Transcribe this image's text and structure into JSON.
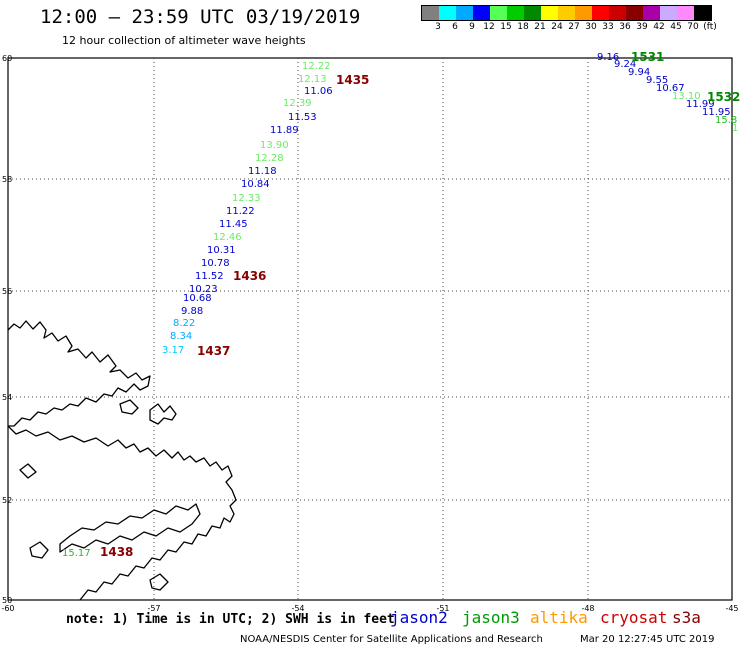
{
  "header": {
    "title": "12:00 – 23:59 UTC 03/19/2019",
    "subtitle": "12 hour collection of altimeter wave heights"
  },
  "legend": {
    "colors": [
      "#808080",
      "#00ffff",
      "#00aaff",
      "#0000ff",
      "#55ff55",
      "#00cc00",
      "#008800",
      "#ffff00",
      "#ffcc00",
      "#ff9900",
      "#ff0000",
      "#cc0000",
      "#880000",
      "#aa00aa",
      "#ccaaff",
      "#ff88ff",
      "#000000"
    ],
    "labels": [
      "3",
      "6",
      "9",
      "12",
      "15",
      "18",
      "21",
      "24",
      "27",
      "30",
      "33",
      "36",
      "39",
      "42",
      "45",
      "70",
      "(ft)"
    ]
  },
  "map": {
    "lat_labels": [
      "60",
      "58",
      "56",
      "54",
      "52",
      "50"
    ],
    "lon_labels": [
      "-60",
      "-57",
      "-54",
      "-51",
      "-48",
      "-45"
    ]
  },
  "tracks": [
    {
      "points": [
        {
          "text": "12.22",
          "color": "#66ee66"
        },
        {
          "text": "12.13",
          "color": "#66ee66"
        },
        {
          "text": "11.06",
          "color": "#0000cc"
        },
        {
          "text": "12.39",
          "color": "#66ee66"
        },
        {
          "text": "11.53",
          "color": "#0000cc"
        },
        {
          "text": "11.89",
          "color": "#0000cc"
        },
        {
          "text": "13.90",
          "color": "#66ee66"
        },
        {
          "text": "12.28",
          "color": "#66ee66"
        },
        {
          "text": "11.18",
          "color": "#0000cc"
        },
        {
          "text": "10.84",
          "color": "#0000cc"
        },
        {
          "text": "12.33",
          "color": "#66ee66"
        },
        {
          "text": "11.22",
          "color": "#0000cc"
        },
        {
          "text": "11.45",
          "color": "#0000cc"
        },
        {
          "text": "12.46",
          "color": "#66ee66"
        },
        {
          "text": "10.31",
          "color": "#0000cc"
        },
        {
          "text": "10.78",
          "color": "#0000cc"
        },
        {
          "text": "11.52",
          "color": "#0000cc"
        },
        {
          "text": "10.23",
          "color": "#0000cc"
        },
        {
          "text": "10.68",
          "color": "#0000cc"
        },
        {
          "text": "9.88",
          "color": "#0000cc"
        },
        {
          "text": "8.22",
          "color": "#00aaff"
        },
        {
          "text": "8.34",
          "color": "#00aaff"
        },
        {
          "text": "3.17",
          "color": "#00ccff"
        },
        {
          "text": "15.17",
          "color": "#22bb22"
        }
      ]
    },
    {
      "points": [
        {
          "text": "9.16",
          "color": "#0000cc"
        },
        {
          "text": "9.24",
          "color": "#0000cc"
        },
        {
          "text": "9.94",
          "color": "#0000cc"
        },
        {
          "text": "9.55",
          "color": "#0000cc"
        },
        {
          "text": "10.67",
          "color": "#0000cc"
        },
        {
          "text": "13.10",
          "color": "#66ee66"
        },
        {
          "text": "11.99",
          "color": "#0000cc"
        },
        {
          "text": "11.95",
          "color": "#0000cc"
        },
        {
          "text": "15.8",
          "color": "#22bb22"
        },
        {
          "text": "1",
          "color": "#66ee66"
        }
      ]
    }
  ],
  "time_labels": [
    {
      "text": "1435",
      "color": "#880000"
    },
    {
      "text": "1436",
      "color": "#880000"
    },
    {
      "text": "1437",
      "color": "#880000"
    },
    {
      "text": "1438",
      "color": "#880000"
    },
    {
      "text": "1531",
      "color": "#008800"
    },
    {
      "text": "1532",
      "color": "#008800"
    }
  ],
  "footer": {
    "note": "note: 1) Time is in UTC; 2) SWH is in feet",
    "satellites": [
      {
        "name": "jason2",
        "color": "#0000cc"
      },
      {
        "name": "jason3",
        "color": "#009900"
      },
      {
        "name": "altika",
        "color": "#ff9900"
      },
      {
        "name": "cryosat",
        "color": "#cc0000"
      },
      {
        "name": "s3a",
        "color": "#880000"
      }
    ],
    "credit": "NOAA/NESDIS Center for Satellite Applications and Research",
    "timestamp": "Mar 20 12:27:45 UTC 2019"
  }
}
